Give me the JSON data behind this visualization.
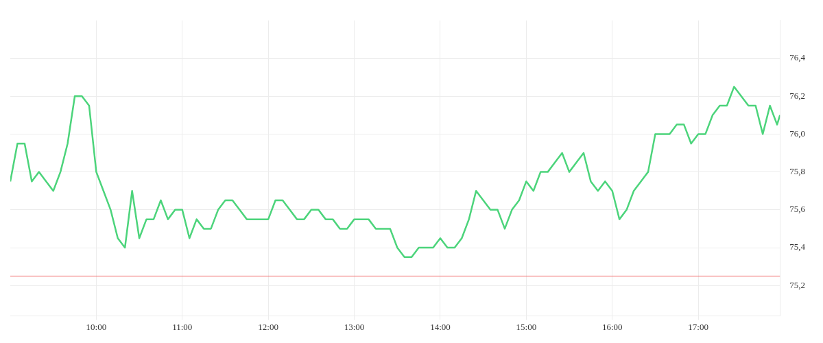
{
  "chart_data": {
    "type": "line",
    "x": [
      9,
      9.0833,
      9.1667,
      9.25,
      9.3333,
      9.4167,
      9.5,
      9.5833,
      9.6667,
      9.75,
      9.8333,
      9.9167,
      10,
      10.0833,
      10.1667,
      10.25,
      10.3333,
      10.4167,
      10.5,
      10.5833,
      10.6667,
      10.75,
      10.8333,
      10.9167,
      11,
      11.0833,
      11.1667,
      11.25,
      11.3333,
      11.4167,
      11.5,
      11.5833,
      11.6667,
      11.75,
      11.8333,
      11.9167,
      12,
      12.0833,
      12.1667,
      12.25,
      12.3333,
      12.4167,
      12.5,
      12.5833,
      12.6667,
      12.75,
      12.8333,
      12.9167,
      13,
      13.0833,
      13.1667,
      13.25,
      13.3333,
      13.4167,
      13.5,
      13.5833,
      13.6667,
      13.75,
      13.8333,
      13.9167,
      14,
      14.0833,
      14.1667,
      14.25,
      14.3333,
      14.4167,
      14.5,
      14.5833,
      14.6667,
      14.75,
      14.8333,
      14.9167,
      15,
      15.0833,
      15.1667,
      15.25,
      15.3333,
      15.4167,
      15.5,
      15.5833,
      15.6667,
      15.75,
      15.8333,
      15.9167,
      16,
      16.0833,
      16.1667,
      16.25,
      16.3333,
      16.4167,
      16.5,
      16.5833,
      16.6667,
      16.75,
      16.8333,
      16.9167,
      17,
      17.0833,
      17.1667,
      17.25,
      17.3333,
      17.4167,
      17.5,
      17.5833,
      17.6667,
      17.75,
      17.8333,
      17.9167,
      17.95
    ],
    "series": [
      {
        "color": "#4cd47b",
        "values": [
          75.75,
          75.95,
          75.95,
          75.75,
          75.8,
          75.75,
          75.7,
          75.8,
          75.95,
          76.2,
          76.2,
          76.15,
          75.8,
          75.7,
          75.6,
          75.45,
          75.4,
          75.7,
          75.45,
          75.55,
          75.55,
          75.65,
          75.55,
          75.6,
          75.6,
          75.45,
          75.55,
          75.5,
          75.5,
          75.6,
          75.65,
          75.65,
          75.6,
          75.55,
          75.55,
          75.55,
          75.55,
          75.65,
          75.65,
          75.6,
          75.55,
          75.55,
          75.6,
          75.6,
          75.55,
          75.55,
          75.5,
          75.5,
          75.55,
          75.55,
          75.55,
          75.5,
          75.5,
          75.5,
          75.4,
          75.35,
          75.35,
          75.4,
          75.4,
          75.4,
          75.45,
          75.4,
          75.4,
          75.45,
          75.55,
          75.7,
          75.65,
          75.6,
          75.6,
          75.5,
          75.6,
          75.65,
          75.75,
          75.7,
          75.8,
          75.8,
          75.85,
          75.9,
          75.8,
          75.85,
          75.9,
          75.75,
          75.7,
          75.75,
          75.7,
          75.55,
          75.6,
          75.7,
          75.75,
          75.8,
          76,
          76,
          76,
          76.05,
          76.05,
          75.95,
          76,
          76,
          76.1,
          76.15,
          76.15,
          76.25,
          76.2,
          76.15,
          76.15,
          76,
          76.15,
          76.05,
          76.1
        ]
      }
    ],
    "xlim": [
      9,
      17.95
    ],
    "xticks": [
      {
        "value": 10,
        "label": "10:00"
      },
      {
        "value": 11,
        "label": "11:00"
      },
      {
        "value": 12,
        "label": "12:00"
      },
      {
        "value": 13,
        "label": "13:00"
      },
      {
        "value": 14,
        "label": "14:00"
      },
      {
        "value": 15,
        "label": "15:00"
      },
      {
        "value": 16,
        "label": "16:00"
      },
      {
        "value": 17,
        "label": "17:00"
      }
    ],
    "ylim": [
      75.04,
      76.6
    ],
    "yticks": [
      {
        "value": 75.2,
        "label": "75,2"
      },
      {
        "value": 75.4,
        "label": "75,4"
      },
      {
        "value": 75.6,
        "label": "75,6"
      },
      {
        "value": 75.8,
        "label": "75,8"
      },
      {
        "value": 76,
        "label": "76,0"
      },
      {
        "value": 76.2,
        "label": "76,2"
      },
      {
        "value": 76.4,
        "label": "76,4"
      }
    ],
    "ref_lines": [
      {
        "axis": "y",
        "value": 75.25,
        "color": "#f26d6d"
      }
    ],
    "grid": true,
    "legend": false,
    "marker": "none",
    "line_style": "solid"
  }
}
